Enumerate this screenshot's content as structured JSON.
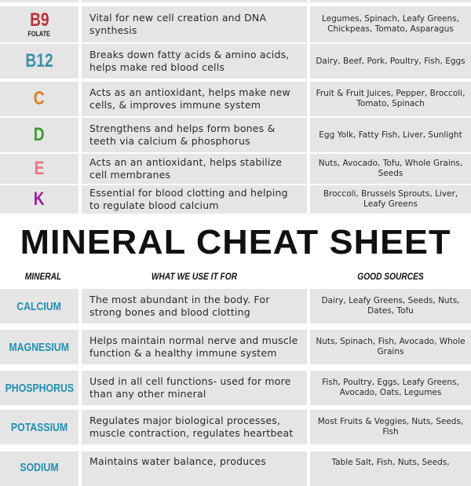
{
  "vitamins": [
    {
      "name": "B9",
      "sub": "FOLATE",
      "color": "#b8333a",
      "use": "Vital for new cell creation and DNA synthesis",
      "sources": "Legumes, Spinach, Leafy Greens, Chickpeas, Tomato, Asparagus"
    },
    {
      "name": "B12",
      "sub": "",
      "color": "#3b8fa6",
      "use": "Breaks down fatty acids & amino acids, helps make red blood cells",
      "sources": "Dairy, Beef, Pork, Poultry, Fish, Eggs"
    },
    {
      "name": "C",
      "sub": "",
      "color": "#d9821f",
      "use": "Acts as an antioxidant, helps make new cells, & improves immune system",
      "sources": "Fruit & Fruit Juices, Pepper, Broccoli, Tomato, Spinach"
    },
    {
      "name": "D",
      "sub": "",
      "color": "#3f9a2c",
      "use": "Strengthens and helps form bones & teeth via calcium & phosphorus",
      "sources": "Egg Yolk, Fatty Fish, Liver, Sunlight"
    },
    {
      "name": "E",
      "sub": "",
      "color": "#e57785",
      "use": "Acts an an antioxidant, helps stabilize cell membranes",
      "sources": "Nuts, Avocado, Tofu, Whole Grains, Seeds"
    },
    {
      "name": "K",
      "sub": "",
      "color": "#9b1fa3",
      "use": "Essential for blood clotting and helping to regulate blood calcium",
      "sources": "Broccoli, Brussels Sprouts, Liver, Leafy Greens"
    }
  ],
  "title": "MINERAL CHEAT SHEET",
  "headers": {
    "mineral": "MINERAL",
    "use": "WHAT WE USE IT FOR",
    "sources": "GOOD SOURCES"
  },
  "minerals": [
    {
      "name": "CALCIUM",
      "use": "The most abundant in the body. For strong bones and blood clotting",
      "sources": "Dairy, Leafy Greens, Seeds, Nuts, Dates, Tofu"
    },
    {
      "name": "MAGNESIUM",
      "use": "Helps maintain normal nerve and muscle function & a healthy immune system",
      "sources": "Nuts, Spinach, Fish, Avocado, Whole Grains"
    },
    {
      "name": "PHOSPHORUS",
      "use": "Used in all cell functions- used for more than any other mineral",
      "sources": "Fish, Poultry, Eggs, Leafy Greens, Avocado, Oats, Legumes"
    },
    {
      "name": "POTASSIUM",
      "use": "Regulates major biological processes, muscle contraction, regulates heartbeat",
      "sources": "Most Fruits & Veggies, Nuts, Seeds, Fish"
    },
    {
      "name": "SODIUM",
      "use": "Maintains water balance, produces",
      "sources": "Table Salt, Fish, Nuts, Seeds,"
    }
  ]
}
